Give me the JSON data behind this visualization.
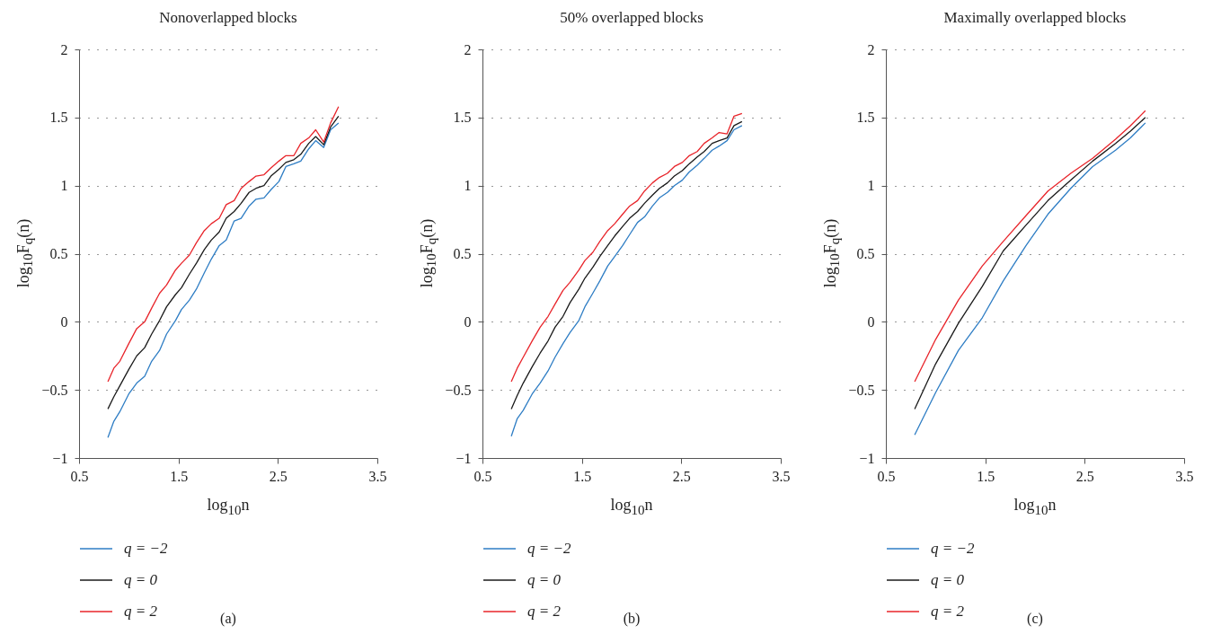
{
  "chart_data": [
    {
      "type": "line",
      "title": "Nonoverlapped blocks",
      "xlabel": "log$_{10}$n",
      "ylabel": "log$_{10}$F$_{q}$(n)",
      "xlim": [
        0.5,
        3.5
      ],
      "xticks": [
        0.5,
        1.5,
        2.5,
        3.5
      ],
      "ylim": [
        -1,
        2
      ],
      "yticks": [
        -1,
        -0.5,
        0,
        0.5,
        1,
        1.5,
        2
      ],
      "grid": "y",
      "legend": "bottom",
      "annotations": [
        "(a)"
      ],
      "x": [
        0.79,
        0.85,
        0.91,
        1.0,
        1.08,
        1.16,
        1.23,
        1.31,
        1.38,
        1.47,
        1.53,
        1.61,
        1.68,
        1.76,
        1.83,
        1.91,
        1.98,
        2.06,
        2.13,
        2.21,
        2.28,
        2.36,
        2.43,
        2.51,
        2.58,
        2.66,
        2.73,
        2.81,
        2.88,
        2.96,
        3.03,
        3.11
      ],
      "series": [
        {
          "name": "q = −2",
          "color": "#2e7dc4",
          "values": [
            -0.85,
            -0.73,
            -0.66,
            -0.53,
            -0.45,
            -0.4,
            -0.29,
            -0.21,
            -0.09,
            0.01,
            0.09,
            0.16,
            0.24,
            0.36,
            0.46,
            0.56,
            0.6,
            0.74,
            0.76,
            0.85,
            0.9,
            0.91,
            0.97,
            1.03,
            1.14,
            1.16,
            1.18,
            1.27,
            1.33,
            1.28,
            1.41,
            1.46
          ]
        },
        {
          "name": "q = 0",
          "color": "#1a1a1a",
          "values": [
            -0.64,
            -0.55,
            -0.47,
            -0.35,
            -0.25,
            -0.19,
            -0.09,
            0.01,
            0.11,
            0.2,
            0.25,
            0.35,
            0.43,
            0.53,
            0.6,
            0.66,
            0.76,
            0.81,
            0.87,
            0.95,
            0.98,
            1.0,
            1.07,
            1.12,
            1.17,
            1.19,
            1.23,
            1.31,
            1.36,
            1.3,
            1.43,
            1.51
          ]
        },
        {
          "name": "q = 2",
          "color": "#e8242a",
          "values": [
            -0.44,
            -0.34,
            -0.29,
            -0.16,
            -0.05,
            0.0,
            0.1,
            0.21,
            0.27,
            0.38,
            0.43,
            0.49,
            0.58,
            0.67,
            0.72,
            0.76,
            0.86,
            0.89,
            0.98,
            1.03,
            1.07,
            1.08,
            1.13,
            1.18,
            1.22,
            1.22,
            1.31,
            1.35,
            1.41,
            1.32,
            1.46,
            1.58
          ]
        }
      ]
    },
    {
      "type": "line",
      "title": "50% overlapped blocks",
      "xlabel": "log$_{10}$n",
      "ylabel": "log$_{10}$F$_{q}$(n)",
      "xlim": [
        0.5,
        3.5
      ],
      "xticks": [
        0.5,
        1.5,
        2.5,
        3.5
      ],
      "ylim": [
        -1,
        2
      ],
      "yticks": [
        -1,
        -0.5,
        0,
        0.5,
        1,
        1.5,
        2
      ],
      "grid": "y",
      "legend": "bottom",
      "annotations": [
        "(b)"
      ],
      "x": [
        0.79,
        0.85,
        0.91,
        1.0,
        1.08,
        1.16,
        1.23,
        1.31,
        1.38,
        1.47,
        1.53,
        1.61,
        1.68,
        1.76,
        1.83,
        1.91,
        1.98,
        2.06,
        2.13,
        2.21,
        2.28,
        2.36,
        2.43,
        2.51,
        2.58,
        2.66,
        2.73,
        2.81,
        2.88,
        2.96,
        3.03,
        3.11
      ],
      "series": [
        {
          "name": "q = −2",
          "color": "#2e7dc4",
          "values": [
            -0.84,
            -0.71,
            -0.65,
            -0.53,
            -0.45,
            -0.36,
            -0.26,
            -0.16,
            -0.08,
            0.01,
            0.11,
            0.21,
            0.3,
            0.41,
            0.48,
            0.56,
            0.64,
            0.73,
            0.77,
            0.85,
            0.91,
            0.95,
            1.0,
            1.04,
            1.1,
            1.15,
            1.2,
            1.26,
            1.29,
            1.33,
            1.41,
            1.44
          ]
        },
        {
          "name": "q = 0",
          "color": "#1a1a1a",
          "values": [
            -0.64,
            -0.54,
            -0.45,
            -0.33,
            -0.23,
            -0.14,
            -0.04,
            0.04,
            0.14,
            0.24,
            0.32,
            0.4,
            0.48,
            0.56,
            0.63,
            0.7,
            0.76,
            0.81,
            0.87,
            0.93,
            0.98,
            1.02,
            1.07,
            1.11,
            1.16,
            1.21,
            1.25,
            1.31,
            1.33,
            1.35,
            1.44,
            1.47
          ]
        },
        {
          "name": "q = 2",
          "color": "#e8242a",
          "values": [
            -0.44,
            -0.34,
            -0.26,
            -0.14,
            -0.04,
            0.04,
            0.13,
            0.23,
            0.29,
            0.38,
            0.45,
            0.51,
            0.59,
            0.67,
            0.72,
            0.79,
            0.85,
            0.89,
            0.96,
            1.02,
            1.06,
            1.09,
            1.14,
            1.17,
            1.22,
            1.25,
            1.31,
            1.35,
            1.39,
            1.38,
            1.51,
            1.53
          ]
        }
      ]
    },
    {
      "type": "line",
      "title": "Maximally overlapped blocks",
      "xlabel": "log$_{10}$n",
      "ylabel": "log$_{10}$F$_{q}$(n)",
      "xlim": [
        0.5,
        3.5
      ],
      "xticks": [
        0.5,
        1.5,
        2.5,
        3.5
      ],
      "ylim": [
        -1,
        2
      ],
      "yticks": [
        -1,
        -0.5,
        0,
        0.5,
        1,
        1.5,
        2
      ],
      "grid": "y",
      "legend": "bottom",
      "annotations": [
        "(c)"
      ],
      "x": [
        0.79,
        1.0,
        1.23,
        1.47,
        1.68,
        1.91,
        2.13,
        2.36,
        2.58,
        2.81,
        2.96,
        3.11
      ],
      "series": [
        {
          "name": "q = −2",
          "color": "#2e7dc4",
          "values": [
            -0.83,
            -0.52,
            -0.21,
            0.03,
            0.3,
            0.56,
            0.79,
            0.98,
            1.14,
            1.26,
            1.35,
            1.46
          ]
        },
        {
          "name": "q = 0",
          "color": "#1a1a1a",
          "values": [
            -0.64,
            -0.31,
            -0.01,
            0.26,
            0.52,
            0.71,
            0.89,
            1.04,
            1.18,
            1.31,
            1.4,
            1.5
          ]
        },
        {
          "name": "q = 2",
          "color": "#e8242a",
          "values": [
            -0.44,
            -0.13,
            0.16,
            0.41,
            0.59,
            0.78,
            0.96,
            1.09,
            1.2,
            1.34,
            1.44,
            1.55
          ]
        }
      ]
    }
  ]
}
